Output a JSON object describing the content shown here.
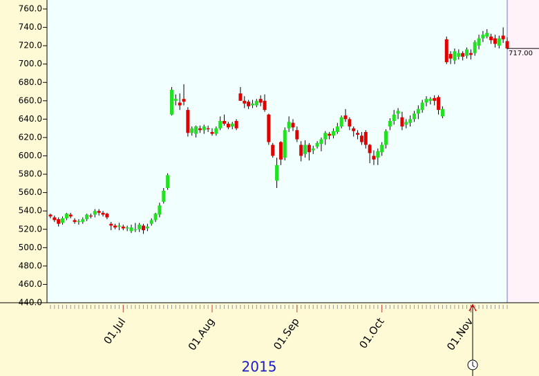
{
  "chart_data": {
    "type": "candlestick",
    "x_label": "2015",
    "categories": [
      null,
      null,
      null,
      null,
      null,
      null,
      null,
      null,
      null,
      null,
      null,
      null,
      null,
      null,
      null,
      null,
      null,
      null,
      "01.Jul",
      null,
      null,
      null,
      null,
      null,
      null,
      null,
      null,
      null,
      null,
      null,
      null,
      null,
      null,
      null,
      null,
      null,
      null,
      null,
      null,
      null,
      "01.Aug",
      null,
      null,
      null,
      null,
      null,
      null,
      null,
      null,
      null,
      null,
      null,
      null,
      null,
      null,
      null,
      null,
      null,
      null,
      null,
      null,
      "01.Sep",
      null,
      null,
      null,
      null,
      null,
      null,
      null,
      null,
      null,
      null,
      null,
      null,
      null,
      null,
      null,
      null,
      null,
      null,
      null,
      null,
      "01.Oct",
      null,
      null,
      null,
      null,
      null,
      null,
      null,
      null,
      null,
      null,
      null,
      null,
      null,
      null,
      null,
      null,
      null,
      null,
      null,
      null,
      null,
      "01.Nov",
      null,
      null,
      null,
      null,
      null,
      null,
      null,
      null,
      null
    ],
    "up_color": "#22e022",
    "down_color": "#e00000",
    "series": [
      {
        "open": [
          536,
          533,
          531,
          527,
          532,
          536,
          530,
          528,
          528,
          531,
          535,
          536,
          540,
          538,
          537,
          526,
          524,
          523,
          523,
          521,
          518,
          520,
          520,
          524,
          521,
          526,
          530,
          536,
          550,
          565,
          645,
          660,
          658,
          662,
          650,
          625,
          624,
          630,
          628,
          630,
          626,
          624,
          630,
          638,
          635,
          632,
          638,
          668,
          660,
          659,
          655,
          655,
          662,
          660,
          645,
          612,
          573,
          615,
          598,
          630,
          636,
          628,
          612,
          602,
          612,
          606,
          610,
          613,
          618,
          624,
          622,
          626,
          632,
          644,
          640,
          630,
          625,
          622,
          626,
          612,
          600,
          598,
          604,
          612,
          632,
          638,
          646,
          642,
          634,
          636,
          640,
          646,
          650,
          658,
          660,
          663,
          664,
          643,
          727,
          711,
          704,
          708,
          712,
          709,
          712,
          712,
          720,
          728,
          730,
          730,
          728,
          720,
          731,
          725
        ],
        "high": [
          537,
          535,
          533,
          534,
          538,
          538,
          532,
          531,
          533,
          537,
          537,
          542,
          542,
          540,
          538,
          528,
          526,
          527,
          525,
          524,
          525,
          527,
          527,
          526,
          526,
          532,
          538,
          549,
          565,
          581,
          675,
          667,
          668,
          678,
          653,
          632,
          633,
          633,
          634,
          633,
          630,
          632,
          643,
          645,
          637,
          637,
          640,
          675,
          665,
          661,
          661,
          662,
          666,
          667,
          646,
          614,
          598,
          616,
          631,
          643,
          640,
          632,
          616,
          617,
          614,
          611,
          616,
          620,
          627,
          626,
          630,
          636,
          644,
          651,
          642,
          632,
          628,
          626,
          628,
          613,
          606,
          608,
          615,
          629,
          641,
          650,
          652,
          648,
          640,
          644,
          649,
          655,
          661,
          665,
          664,
          666,
          666,
          654,
          730,
          714,
          717,
          716,
          714,
          718,
          716,
          726,
          732,
          736,
          738,
          733,
          732,
          731,
          740,
          729
        ],
        "low": [
          532,
          528,
          523,
          525,
          530,
          532,
          526,
          525,
          526,
          529,
          532,
          533,
          535,
          534,
          531,
          519,
          520,
          519,
          519,
          518,
          516,
          517,
          517,
          515,
          518,
          524,
          528,
          533,
          548,
          563,
          644,
          655,
          650,
          655,
          621,
          622,
          620,
          625,
          624,
          626,
          622,
          622,
          628,
          633,
          629,
          629,
          628,
          660,
          652,
          651,
          652,
          653,
          654,
          648,
          612,
          598,
          565,
          590,
          595,
          626,
          627,
          615,
          594,
          598,
          595,
          602,
          608,
          605,
          612,
          618,
          619,
          624,
          630,
          637,
          628,
          621,
          618,
          612,
          608,
          592,
          590,
          590,
          600,
          608,
          628,
          634,
          640,
          628,
          630,
          632,
          637,
          640,
          647,
          654,
          656,
          655,
          645,
          641,
          700,
          700,
          700,
          705,
          704,
          706,
          705,
          709,
          716,
          724,
          728,
          722,
          718,
          717,
          723,
          716
        ],
        "close": [
          534,
          530,
          526,
          532,
          537,
          534,
          528,
          529,
          531,
          536,
          534,
          540,
          538,
          536,
          533,
          524,
          522,
          524,
          521,
          522,
          522,
          520,
          525,
          519,
          523,
          530,
          537,
          546,
          562,
          579,
          672,
          662,
          655,
          659,
          625,
          630,
          632,
          628,
          632,
          629,
          624,
          630,
          638,
          635,
          631,
          635,
          630,
          660,
          657,
          654,
          657,
          660,
          658,
          650,
          615,
          600,
          590,
          596,
          628,
          637,
          631,
          618,
          600,
          612,
          604,
          608,
          614,
          618,
          625,
          622,
          627,
          632,
          642,
          640,
          632,
          627,
          623,
          615,
          612,
          603,
          596,
          605,
          612,
          627,
          638,
          645,
          649,
          632,
          637,
          640,
          646,
          651,
          658,
          662,
          662,
          660,
          650,
          651,
          702,
          706,
          714,
          712,
          708,
          716,
          710,
          724,
          728,
          732,
          734,
          726,
          722,
          728,
          727,
          717
        ]
      }
    ],
    "last_price": {
      "value": 717,
      "label": "717.00"
    },
    "ylim": [
      440,
      760
    ],
    "yticks": [
      {
        "value": 440,
        "label": "440.0"
      },
      {
        "value": 460,
        "label": "460.0"
      },
      {
        "value": 480,
        "label": "480.0"
      },
      {
        "value": 500,
        "label": "500.0"
      },
      {
        "value": 520,
        "label": "520.0"
      },
      {
        "value": 540,
        "label": "540.0"
      },
      {
        "value": 560,
        "label": "560.0"
      },
      {
        "value": 580,
        "label": "580.0"
      },
      {
        "value": 600,
        "label": "600.0"
      },
      {
        "value": 620,
        "label": "620.0"
      },
      {
        "value": 640,
        "label": "640.0"
      },
      {
        "value": 660,
        "label": "660.0"
      },
      {
        "value": 680,
        "label": "680.0"
      },
      {
        "value": 700,
        "label": "700.0"
      },
      {
        "value": 720,
        "label": "720.0"
      },
      {
        "value": 740,
        "label": "740.0"
      },
      {
        "value": 760,
        "label": "760.0"
      }
    ]
  }
}
